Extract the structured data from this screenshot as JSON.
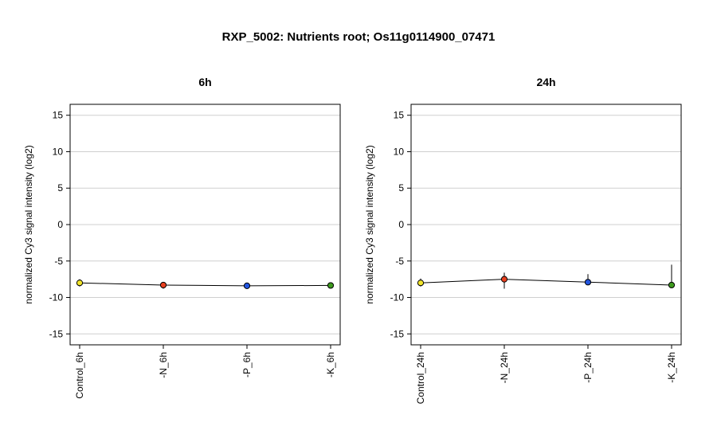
{
  "title": "RXP_5002: Nutrients root; Os11g0114900_07471",
  "chart_data": [
    {
      "type": "line",
      "title": "6h",
      "ylabel": "normalized Cy3 signal intensity (log2)",
      "xlabel": "",
      "ylim": [
        -16.5,
        16.5
      ],
      "yticks": [
        -15,
        -10,
        -5,
        0,
        5,
        10,
        15
      ],
      "grid": true,
      "categories": [
        "Control_6h",
        "-N_6h",
        "-P_6h",
        "-K_6h"
      ],
      "values": [
        -8.0,
        -8.3,
        -8.4,
        -8.35
      ],
      "errors": [
        [
          -8.5,
          -7.5
        ],
        [
          -8.8,
          -7.9
        ],
        [
          -8.5,
          -8.2
        ],
        [
          -8.7,
          -8.0
        ]
      ],
      "colors": [
        "#f2e52a",
        "#e8401f",
        "#2255e0",
        "#3d9a1e"
      ]
    },
    {
      "type": "line",
      "title": "24h",
      "ylabel": "normalized Cy3 signal intensity (log2)",
      "xlabel": "",
      "ylim": [
        -16.5,
        16.5
      ],
      "yticks": [
        -15,
        -10,
        -5,
        0,
        5,
        10,
        15
      ],
      "grid": true,
      "categories": [
        "Control_24h",
        "-N_24h",
        "-P_24h",
        "-K_24h"
      ],
      "values": [
        -8.0,
        -7.5,
        -7.9,
        -8.3
      ],
      "errors": [
        [
          -8.5,
          -7.4
        ],
        [
          -8.8,
          -6.6
        ],
        [
          -8.3,
          -6.8
        ],
        [
          -8.6,
          -5.5
        ]
      ],
      "colors": [
        "#f2e52a",
        "#e8401f",
        "#2255e0",
        "#3d9a1e"
      ]
    }
  ]
}
